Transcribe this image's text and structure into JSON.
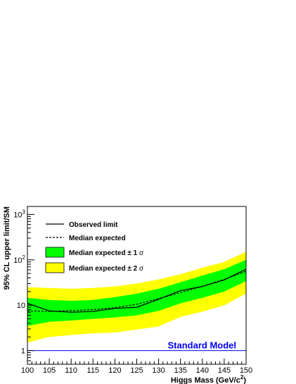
{
  "chart_data": {
    "type": "line",
    "xlabel": "Higgs Mass (GeV/c",
    "xlabel_sup": "2",
    "xlabel_end": ")",
    "ylabel": "95% CL upper limit/SM",
    "x_ticks": [
      "100",
      "105",
      "110",
      "115",
      "120",
      "125",
      "130",
      "135",
      "140",
      "145",
      "150"
    ],
    "y_scale": "log",
    "y_ticks": [
      {
        "value": 1,
        "label": "1"
      },
      {
        "value": 10,
        "label": "10"
      },
      {
        "value": 100,
        "base": "10",
        "exp": "2"
      },
      {
        "value": 1000,
        "base": "10",
        "exp": "3"
      }
    ],
    "xlim": [
      100,
      150
    ],
    "ylim": [
      0.5,
      1500
    ],
    "legend_position": "top-left",
    "x": [
      100,
      105,
      110,
      115,
      120,
      125,
      130,
      135,
      140,
      145,
      150
    ],
    "series": [
      {
        "name": "Observed limit",
        "style": "solid",
        "color": "#000000",
        "values": [
          11.0,
          7.5,
          7.0,
          7.3,
          8.5,
          9.0,
          13.5,
          21.0,
          26.0,
          36.0,
          62.0
        ]
      },
      {
        "name": "Median expected",
        "style": "dashed",
        "color": "#000000",
        "values": [
          7.5,
          7.3,
          7.6,
          8.0,
          8.8,
          10.5,
          14.0,
          19.0,
          26.0,
          37.0,
          56.0
        ]
      }
    ],
    "bands": [
      {
        "name": "Median expected",
        "suffix": "± 2",
        "sigma_symbol": "σ",
        "color": "#ffff00",
        "lower": [
          1.5,
          2.0,
          2.2,
          2.4,
          2.5,
          2.9,
          3.4,
          5.5,
          7.2,
          10.0,
          18.0
        ],
        "upper": [
          25.0,
          24.0,
          23.0,
          24.0,
          26.0,
          30.0,
          37.0,
          48.0,
          67.0,
          90.0,
          150.0
        ]
      },
      {
        "name": "Median expected",
        "suffix": "± 1",
        "sigma_symbol": "σ",
        "color": "#00ff00",
        "lower": [
          3.5,
          4.3,
          4.6,
          5.0,
          5.4,
          6.0,
          7.5,
          11.0,
          14.5,
          20.0,
          34.0
        ],
        "upper": [
          14.5,
          13.0,
          12.5,
          13.0,
          15.0,
          18.0,
          23.0,
          32.0,
          45.0,
          62.0,
          100.0
        ]
      }
    ],
    "reference_line": {
      "label": "Standard Model",
      "value": 1,
      "color": "#0000ff"
    }
  }
}
